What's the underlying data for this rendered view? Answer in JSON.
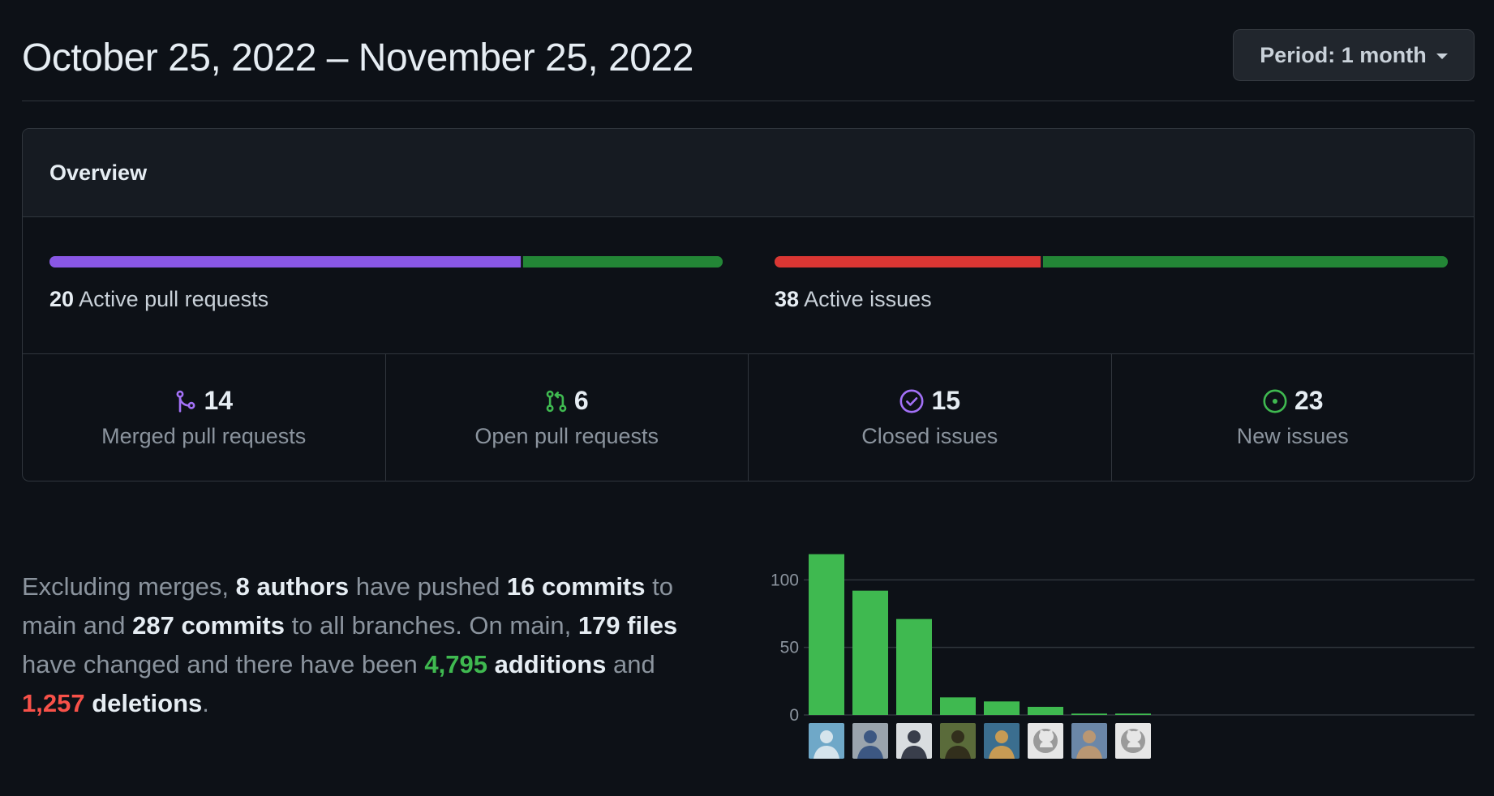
{
  "header": {
    "title": "October 25, 2022 – November 25, 2022",
    "period_label": "Period: 1 month"
  },
  "overview": {
    "title": "Overview",
    "pull_requests": {
      "count": "20",
      "label": "Active pull requests",
      "merged_fraction": 0.7,
      "color_merged": "#8957e5",
      "color_open": "#238636"
    },
    "issues": {
      "count": "38",
      "label": "Active issues",
      "closed_fraction": 0.395,
      "color_closed": "#da3633",
      "color_new": "#238636"
    },
    "stats": [
      {
        "value": "14",
        "label": "Merged pull requests",
        "icon": "git-merge-icon",
        "color": "#a371f7"
      },
      {
        "value": "6",
        "label": "Open pull requests",
        "icon": "git-pull-request-icon",
        "color": "#3fb950"
      },
      {
        "value": "15",
        "label": "Closed issues",
        "icon": "issue-closed-icon",
        "color": "#a371f7"
      },
      {
        "value": "23",
        "label": "New issues",
        "icon": "issue-opened-icon",
        "color": "#3fb950"
      }
    ]
  },
  "summary": {
    "p1": "Excluding merges, ",
    "authors": "8 authors",
    "p2": " have pushed ",
    "commits_main": "16 commits",
    "p3": " to main and ",
    "commits_all": "287 commits",
    "p4": " to all branches. On main, ",
    "files": "179 files",
    "p5": " have changed and there have been ",
    "additions_num": "4,795",
    "additions_word": " additions",
    "p6": " and ",
    "deletions_num": "1,257",
    "deletions_word": " deletions",
    "p7": "."
  },
  "chart_data": {
    "type": "bar",
    "title": "",
    "xlabel": "",
    "ylabel": "",
    "categories": [
      "author-1",
      "author-2",
      "author-3",
      "author-4",
      "author-5",
      "author-6",
      "author-7",
      "author-8"
    ],
    "values": [
      119,
      92,
      71,
      13,
      10,
      6,
      1,
      1
    ],
    "yticks": [
      0,
      50,
      100
    ],
    "ylim": [
      0,
      120
    ],
    "bar_color": "#3fb950",
    "grid": true
  },
  "avatars": [
    {
      "name": "avatar-1",
      "bg": "#6fa8c8",
      "fg": "#e8eef2"
    },
    {
      "name": "avatar-2",
      "bg": "#9aa4ad",
      "fg": "#2b4a7a"
    },
    {
      "name": "avatar-3",
      "bg": "#d9dde0",
      "fg": "#1c2230"
    },
    {
      "name": "avatar-4",
      "bg": "#5a6b3a",
      "fg": "#2c2418"
    },
    {
      "name": "avatar-5",
      "bg": "#3b6e8f",
      "fg": "#e0a34a"
    },
    {
      "name": "avatar-6",
      "bg": "#e6e6e6",
      "fg": "#9a9a9a"
    },
    {
      "name": "avatar-7",
      "bg": "#6b87a8",
      "fg": "#c79a6a"
    },
    {
      "name": "avatar-8",
      "bg": "#e6e6e6",
      "fg": "#9a9a9a"
    }
  ]
}
